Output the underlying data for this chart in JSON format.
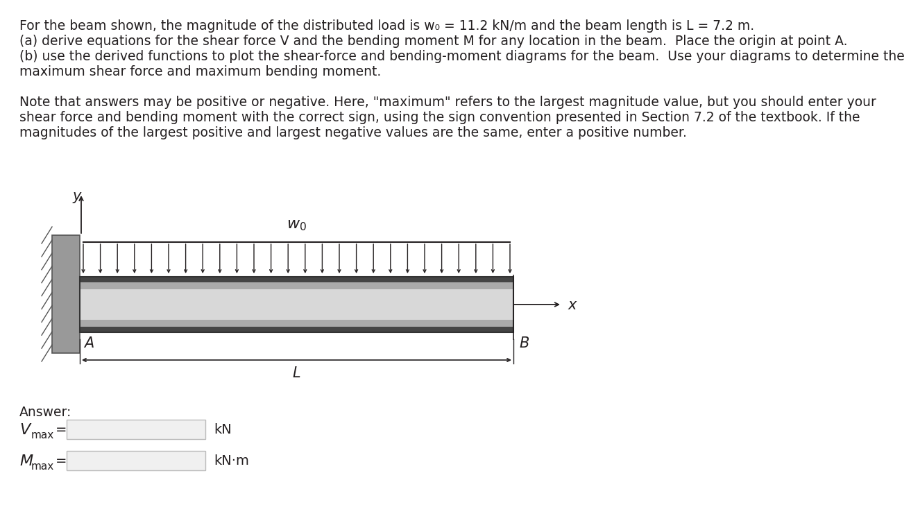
{
  "title_lines": [
    "For the beam shown, the magnitude of the distributed load is w₀ = 11.2 kN/m and the beam length is L = 7.2 m.",
    "(a) derive equations for the shear force V and the bending moment M for any location in the beam.  Place the origin at point A.",
    "(b) use the derived functions to plot the shear-force and bending-moment diagrams for the beam.  Use your diagrams to determine the",
    "maximum shear force and maximum bending moment."
  ],
  "note_lines": [
    "Note that answers may be positive or negative. Here, \"maximum\" refers to the largest magnitude value, but you should enter your",
    "shear force and bending moment with the correct sign, using the sign convention presented in Section 7.2 of the textbook. If the",
    "magnitudes of the largest positive and largest negative values are the same, enter a positive number."
  ],
  "background_color": "#ffffff",
  "text_color": "#231f20",
  "num_arrows": 26,
  "font_size_body": 13.5,
  "font_size_label": 14,
  "font_size_small": 11
}
